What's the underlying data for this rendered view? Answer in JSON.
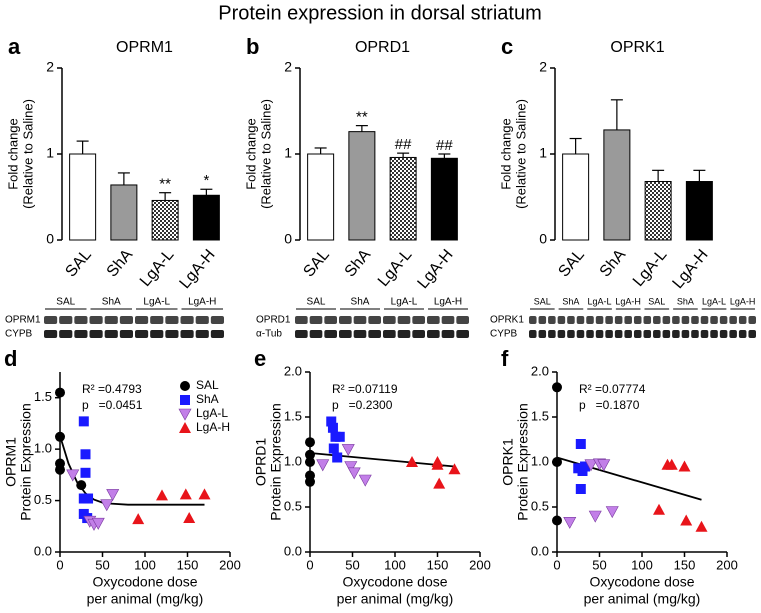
{
  "title": "Protein expression in dorsal striatum",
  "chart_data": [
    {
      "type": "bar",
      "panel": "a",
      "title": "OPRM1",
      "ylabel": [
        "Fold change",
        "(Relative to Saline)"
      ],
      "categories": [
        "SAL",
        "ShA",
        "LgA-L",
        "LgA-H"
      ],
      "values": [
        1.0,
        0.64,
        0.46,
        0.52
      ],
      "errors": [
        0.15,
        0.14,
        0.09,
        0.07
      ],
      "annotations": [
        null,
        null,
        "**",
        "*"
      ],
      "colors": [
        "#ffffff",
        "#9a9a9a",
        "#ffffff",
        "#000000"
      ],
      "hatch": [
        false,
        false,
        true,
        false
      ],
      "ylim": [
        0,
        2
      ],
      "yticks": [
        0,
        1,
        2
      ],
      "blot": {
        "columns": [
          "SAL",
          "ShA",
          "LgA-L",
          "LgA-H"
        ],
        "rows": [
          "OPRM1",
          "CYPB"
        ]
      }
    },
    {
      "type": "bar",
      "panel": "b",
      "title": "OPRD1",
      "ylabel": [
        "Fold change",
        "(Relative to Saline)"
      ],
      "categories": [
        "SAL",
        "ShA",
        "LgA-L",
        "LgA-H"
      ],
      "values": [
        1.0,
        1.26,
        0.96,
        0.95
      ],
      "errors": [
        0.07,
        0.07,
        0.05,
        0.05
      ],
      "annotations": [
        null,
        "**",
        "##",
        "##"
      ],
      "colors": [
        "#ffffff",
        "#9a9a9a",
        "#ffffff",
        "#000000"
      ],
      "hatch": [
        false,
        false,
        true,
        false
      ],
      "ylim": [
        0,
        2
      ],
      "yticks": [
        0,
        1,
        2
      ],
      "blot": {
        "columns": [
          "SAL",
          "ShA",
          "LgA-L",
          "LgA-H"
        ],
        "rows": [
          "OPRD1",
          "α-Tub"
        ]
      }
    },
    {
      "type": "bar",
      "panel": "c",
      "title": "OPRK1",
      "ylabel": [
        "Fold change",
        "(Relative to Saline)"
      ],
      "categories": [
        "SAL",
        "ShA",
        "LgA-L",
        "LgA-H"
      ],
      "values": [
        1.0,
        1.28,
        0.68,
        0.68
      ],
      "errors": [
        0.18,
        0.35,
        0.13,
        0.13
      ],
      "colors": [
        "#ffffff",
        "#9a9a9a",
        "#ffffff",
        "#000000"
      ],
      "hatch": [
        false,
        false,
        true,
        false
      ],
      "ylim": [
        0,
        2
      ],
      "yticks": [
        0,
        1,
        2
      ],
      "blot": {
        "columns": [
          "SAL",
          "ShA",
          "LgA-L",
          "LgA-H",
          "SAL",
          "ShA",
          "LgA-L",
          "LgA-H"
        ],
        "rows": [
          "OPRK1",
          "CYPB"
        ]
      }
    },
    {
      "type": "scatter",
      "panel": "d",
      "ylabel": [
        "OPRM1",
        "Protein Expression"
      ],
      "xlabel": [
        "Oxycodone dose",
        "per animal (mg/kg)"
      ],
      "stats": [
        "R² =0.4793",
        "p   =0.0451"
      ],
      "legend": true,
      "xlim": [
        0,
        200
      ],
      "xticks": [
        0,
        50,
        100,
        150,
        200
      ],
      "ylim": [
        0,
        1.75
      ],
      "yticks": [
        {
          "value": 0,
          "label": "0.0"
        },
        {
          "value": 0.5,
          "label": "0.5"
        },
        {
          "value": 1,
          "label": "1.0"
        },
        {
          "value": 1.5,
          "label": "1.5"
        }
      ],
      "series": [
        {
          "name": "SAL",
          "color": "#000000",
          "marker": "circle",
          "x": [
            0,
            0,
            0,
            0,
            25
          ],
          "values": [
            1.55,
            1.12,
            0.86,
            0.8,
            0.65
          ]
        },
        {
          "name": "ShA",
          "color": "#1a1aff",
          "marker": "square",
          "x": [
            28,
            30,
            30,
            28,
            33,
            28,
            32
          ],
          "values": [
            1.27,
            0.95,
            0.77,
            0.52,
            0.52,
            0.37,
            0.33
          ]
        },
        {
          "name": "LgA-L",
          "color": "#c27fe8",
          "marker": "triangle-down",
          "x": [
            15,
            35,
            40,
            45,
            55,
            62
          ],
          "values": [
            0.75,
            0.3,
            0.27,
            0.28,
            0.46,
            0.56
          ]
        },
        {
          "name": "LgA-H",
          "color": "#e8141a",
          "marker": "triangle-up",
          "x": [
            92,
            120,
            148,
            152,
            170
          ],
          "values": [
            0.32,
            0.55,
            0.56,
            0.33,
            0.56
          ]
        }
      ],
      "fit": {
        "x": [
          0,
          10,
          20,
          30,
          40,
          50,
          60,
          80,
          100,
          130,
          170
        ],
        "y": [
          1.13,
          0.86,
          0.68,
          0.57,
          0.51,
          0.48,
          0.47,
          0.46,
          0.46,
          0.46,
          0.46
        ]
      }
    },
    {
      "type": "scatter",
      "panel": "e",
      "ylabel": [
        "OPRD1",
        "Protein Expression"
      ],
      "xlabel": [
        "Oxycodone dose",
        "per animal (mg/kg)"
      ],
      "stats": [
        "R² =0.07119",
        "p   =0.2300"
      ],
      "legend": false,
      "xlim": [
        0,
        200
      ],
      "xticks": [
        0,
        50,
        100,
        150,
        200
      ],
      "ylim": [
        0,
        2
      ],
      "yticks": [
        {
          "value": 0,
          "label": "0.0"
        },
        {
          "value": 0.5,
          "label": "0.5"
        },
        {
          "value": 1,
          "label": "1.0"
        },
        {
          "value": 1.5,
          "label": "1.5"
        },
        {
          "value": 2,
          "label": "2.0"
        }
      ],
      "series": [
        {
          "color": "#000000",
          "marker": "circle",
          "x": [
            0,
            0,
            0,
            0,
            0
          ],
          "values": [
            1.22,
            1.08,
            1.0,
            0.85,
            0.78
          ]
        },
        {
          "color": "#1a1aff",
          "marker": "square",
          "x": [
            25,
            27,
            30,
            35,
            28,
            32
          ],
          "values": [
            1.45,
            1.38,
            1.28,
            1.28,
            1.15,
            1.05
          ]
        },
        {
          "color": "#c27fe8",
          "marker": "triangle-down",
          "x": [
            15,
            45,
            48,
            52,
            65
          ],
          "values": [
            0.97,
            1.14,
            0.95,
            0.88,
            0.8
          ]
        },
        {
          "color": "#e8141a",
          "marker": "triangle-up",
          "x": [
            120,
            150,
            150,
            152,
            170
          ],
          "values": [
            1.0,
            1.0,
            0.97,
            0.76,
            0.92
          ]
        }
      ],
      "fit": {
        "x": [
          0,
          170
        ],
        "y": [
          1.1,
          0.95
        ]
      }
    },
    {
      "type": "scatter",
      "panel": "f",
      "ylabel": [
        "OPRK1",
        "Protein Expression"
      ],
      "xlabel": [
        "Oxycodone dose",
        "per animal (mg/kg)"
      ],
      "stats": [
        "R² =0.07774",
        "p   =0.1870"
      ],
      "legend": false,
      "xlim": [
        0,
        200
      ],
      "xticks": [
        0,
        50,
        100,
        150,
        200
      ],
      "ylim": [
        0,
        2
      ],
      "yticks": [
        {
          "value": 0,
          "label": "0.0"
        },
        {
          "value": 0.5,
          "label": "0.5"
        },
        {
          "value": 1,
          "label": "1.0"
        },
        {
          "value": 1.5,
          "label": "1.5"
        },
        {
          "value": 2,
          "label": "2.0"
        }
      ],
      "series": [
        {
          "color": "#000000",
          "marker": "circle",
          "x": [
            0,
            0,
            0
          ],
          "values": [
            1.83,
            1.0,
            0.35
          ]
        },
        {
          "color": "#1a1aff",
          "marker": "square",
          "x": [
            28,
            25,
            30,
            33,
            28
          ],
          "values": [
            1.2,
            0.93,
            0.9,
            0.95,
            0.7
          ]
        },
        {
          "color": "#c27fe8",
          "marker": "triangle-down",
          "x": [
            15,
            40,
            50,
            55,
            45,
            65
          ],
          "values": [
            0.33,
            0.97,
            0.98,
            0.97,
            0.4,
            0.45
          ]
        },
        {
          "color": "#e8141a",
          "marker": "triangle-up",
          "x": [
            120,
            130,
            135,
            150,
            152,
            170
          ],
          "values": [
            0.47,
            0.97,
            0.97,
            0.95,
            0.35,
            0.28
          ]
        }
      ],
      "fit": {
        "x": [
          0,
          170
        ],
        "y": [
          1.05,
          0.58
        ]
      }
    }
  ]
}
